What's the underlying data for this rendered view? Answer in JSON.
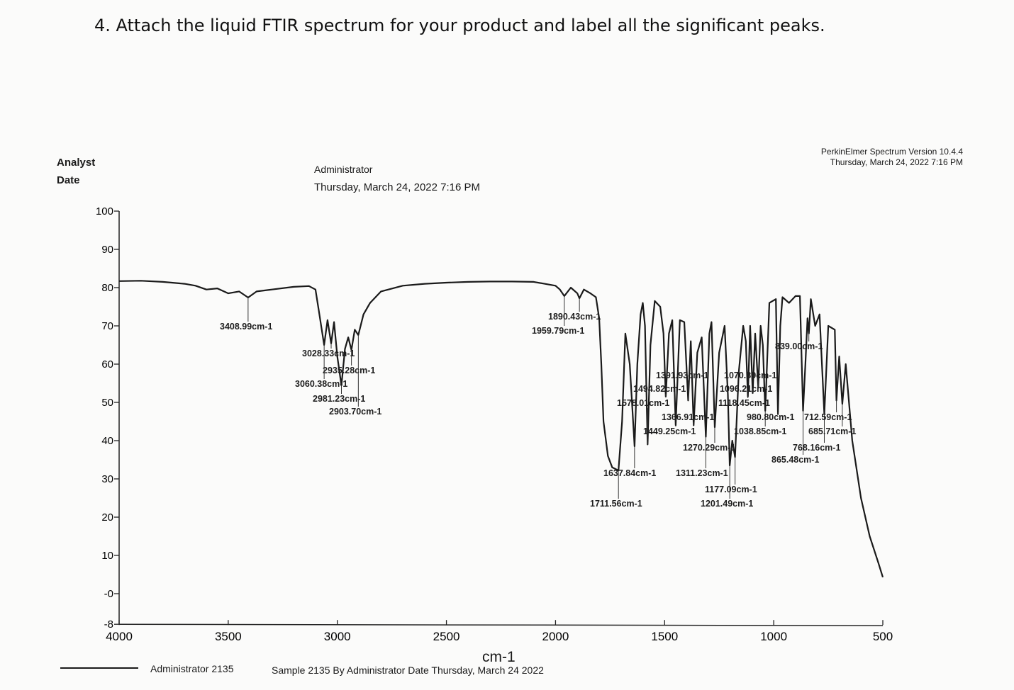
{
  "question": "4.  Attach the liquid FTIR spectrum for your product and label all the significant peaks.",
  "header": {
    "analyst_label": "Analyst",
    "date_label": "Date",
    "analyst_value": "Administrator",
    "date_value": "Thursday, March 24, 2022 7:16 PM",
    "software": "PerkinElmer Spectrum Version 10.4.4",
    "software_date": "Thursday, March 24, 2022 7:16 PM"
  },
  "footer": {
    "legend_name": "Administrator 2135",
    "sample_desc": "Sample 2135 By Administrator Date Thursday, March 24 2022"
  },
  "chart_data": {
    "type": "line",
    "title": "",
    "xlabel": "cm-1",
    "ylabel": "",
    "xlim": [
      4000,
      500
    ],
    "ylim": [
      -8,
      100
    ],
    "x_reversed": true,
    "grid": false,
    "line_color": "#1a1a1a",
    "x_ticks": [
      "4000",
      "3500",
      "3000",
      "2500",
      "2000",
      "1500",
      "1000",
      "500"
    ],
    "y_ticks": [
      "100",
      "90",
      "80",
      "70",
      "60",
      "50",
      "40",
      "30",
      "20",
      "10",
      "-0",
      "-8"
    ],
    "series": [
      {
        "points": [
          [
            4000,
            81.7
          ],
          [
            3900,
            81.8
          ],
          [
            3800,
            81.5
          ],
          [
            3700,
            81
          ],
          [
            3650,
            80.5
          ],
          [
            3600,
            79.5
          ],
          [
            3550,
            79.8
          ],
          [
            3500,
            78.5
          ],
          [
            3450,
            79
          ],
          [
            3408.99,
            77.4
          ],
          [
            3370,
            79
          ],
          [
            3300,
            79.5
          ],
          [
            3200,
            80.2
          ],
          [
            3130,
            80.4
          ],
          [
            3100,
            79.5
          ],
          [
            3085,
            74
          ],
          [
            3060.38,
            65
          ],
          [
            3045,
            71.5
          ],
          [
            3028.33,
            65.4
          ],
          [
            3015,
            71
          ],
          [
            3000,
            62
          ],
          [
            2981.23,
            54.4
          ],
          [
            2965,
            64
          ],
          [
            2950,
            67
          ],
          [
            2935.28,
            63.7
          ],
          [
            2920,
            69
          ],
          [
            2903.7,
            67.6
          ],
          [
            2880,
            73
          ],
          [
            2850,
            76
          ],
          [
            2800,
            79
          ],
          [
            2700,
            80.5
          ],
          [
            2600,
            81
          ],
          [
            2500,
            81.3
          ],
          [
            2400,
            81.5
          ],
          [
            2300,
            81.6
          ],
          [
            2200,
            81.6
          ],
          [
            2100,
            81.5
          ],
          [
            2050,
            81
          ],
          [
            2000,
            80.5
          ],
          [
            1980,
            79.5
          ],
          [
            1959.79,
            77.8
          ],
          [
            1930,
            80
          ],
          [
            1900,
            78.5
          ],
          [
            1890.43,
            77.2
          ],
          [
            1870,
            79.5
          ],
          [
            1840,
            78.5
          ],
          [
            1815,
            77.5
          ],
          [
            1800,
            72
          ],
          [
            1790,
            60
          ],
          [
            1780,
            45
          ],
          [
            1760,
            36
          ],
          [
            1740,
            33
          ],
          [
            1711.56,
            32.2
          ],
          [
            1695,
            45
          ],
          [
            1680,
            68
          ],
          [
            1660,
            60
          ],
          [
            1637.84,
            38.5
          ],
          [
            1625,
            60
          ],
          [
            1610,
            73
          ],
          [
            1600,
            76
          ],
          [
            1590,
            70
          ],
          [
            1578.01,
            39
          ],
          [
            1565,
            65
          ],
          [
            1545,
            76.5
          ],
          [
            1520,
            75
          ],
          [
            1505,
            68
          ],
          [
            1494.82,
            51.5
          ],
          [
            1480,
            68
          ],
          [
            1465,
            71.5
          ],
          [
            1449.25,
            44
          ],
          [
            1430,
            71.5
          ],
          [
            1410,
            71
          ],
          [
            1391.93,
            50.5
          ],
          [
            1380,
            66
          ],
          [
            1366.91,
            44
          ],
          [
            1350,
            63
          ],
          [
            1330,
            67
          ],
          [
            1311.23,
            41
          ],
          [
            1295,
            68
          ],
          [
            1285,
            71
          ],
          [
            1270.29,
            43.5
          ],
          [
            1250,
            63
          ],
          [
            1225,
            70
          ],
          [
            1210,
            52
          ],
          [
            1201.49,
            33.5
          ],
          [
            1190,
            40
          ],
          [
            1177.09,
            35.7
          ],
          [
            1160,
            58
          ],
          [
            1140,
            70
          ],
          [
            1128,
            66
          ],
          [
            1118.45,
            51.5
          ],
          [
            1108,
            70
          ],
          [
            1096.21,
            52.4
          ],
          [
            1085,
            68
          ],
          [
            1070.89,
            54
          ],
          [
            1060,
            70
          ],
          [
            1050,
            65
          ],
          [
            1038.85,
            47.8
          ],
          [
            1020,
            76
          ],
          [
            990,
            77
          ],
          [
            980.8,
            46.9
          ],
          [
            970,
            70
          ],
          [
            960,
            77.5
          ],
          [
            930,
            76
          ],
          [
            900,
            77.8
          ],
          [
            880,
            77.8
          ],
          [
            865.48,
            47.8
          ],
          [
            855,
            60
          ],
          [
            845,
            72
          ],
          [
            839,
            68
          ],
          [
            830,
            77
          ],
          [
            810,
            70
          ],
          [
            790,
            73
          ],
          [
            768.16,
            46.9
          ],
          [
            750,
            70
          ],
          [
            720,
            69
          ],
          [
            712.59,
            50.5
          ],
          [
            700,
            62
          ],
          [
            685.71,
            49.6
          ],
          [
            670,
            60
          ],
          [
            640,
            40
          ],
          [
            600,
            25
          ],
          [
            560,
            15
          ],
          [
            520,
            8
          ],
          [
            500,
            4.3
          ]
        ]
      }
    ],
    "peak_labels": [
      {
        "x": 3408.99,
        "y": 77.4,
        "text": "3408.99cm-1"
      },
      {
        "x": 3028.33,
        "y": 65.4,
        "text": "3028.33cm-1"
      },
      {
        "x": 2935.28,
        "y": 63.7,
        "text": "2935.28cm-1"
      },
      {
        "x": 3060.38,
        "y": 65,
        "text": "3060.38cm-1"
      },
      {
        "x": 2981.23,
        "y": 54.4,
        "text": "2981.23cm-1"
      },
      {
        "x": 2903.7,
        "y": 67.6,
        "text": "2903.70cm-1"
      },
      {
        "x": 1890.43,
        "y": 77.2,
        "text": "1890.43cm-1"
      },
      {
        "x": 1959.79,
        "y": 77.8,
        "text": "1959.79cm-1"
      },
      {
        "x": 1711.56,
        "y": 32.2,
        "text": "1711.56cm-1"
      },
      {
        "x": 1637.84,
        "y": 38.5,
        "text": "1637.84cm-1"
      },
      {
        "x": 1578.01,
        "y": 39,
        "text": "1578.01cm-1"
      },
      {
        "x": 1494.82,
        "y": 51.5,
        "text": "1494.82cm-1"
      },
      {
        "x": 1449.25,
        "y": 44,
        "text": "1449.25cm-1"
      },
      {
        "x": 1391.93,
        "y": 50.5,
        "text": "1391.93cm-1"
      },
      {
        "x": 1366.91,
        "y": 44,
        "text": "1366.91cm-1"
      },
      {
        "x": 1311.23,
        "y": 41,
        "text": "1311.23cm-1"
      },
      {
        "x": 1270.29,
        "y": 43.5,
        "text": "1270.29cm-1"
      },
      {
        "x": 1201.49,
        "y": 33.5,
        "text": "1201.49cm-1"
      },
      {
        "x": 1177.09,
        "y": 35.7,
        "text": "1177.09cm-1"
      },
      {
        "x": 1118.45,
        "y": 51.5,
        "text": "1118.45cm-1"
      },
      {
        "x": 1096.21,
        "y": 52.4,
        "text": "1096.21cm-1"
      },
      {
        "x": 1070.89,
        "y": 54,
        "text": "1070.89cm-1"
      },
      {
        "x": 1038.85,
        "y": 47.8,
        "text": "1038.85cm-1"
      },
      {
        "x": 980.8,
        "y": 46.9,
        "text": "980.80cm-1"
      },
      {
        "x": 865.48,
        "y": 47.8,
        "text": "865.48cm-1"
      },
      {
        "x": 839.0,
        "y": 68,
        "text": "839.00cm-1"
      },
      {
        "x": 768.16,
        "y": 46.9,
        "text": "768.16cm-1"
      },
      {
        "x": 712.59,
        "y": 50.5,
        "text": "712.59cm-1"
      },
      {
        "x": 685.71,
        "y": 49.6,
        "text": "685.71cm-1"
      }
    ]
  }
}
